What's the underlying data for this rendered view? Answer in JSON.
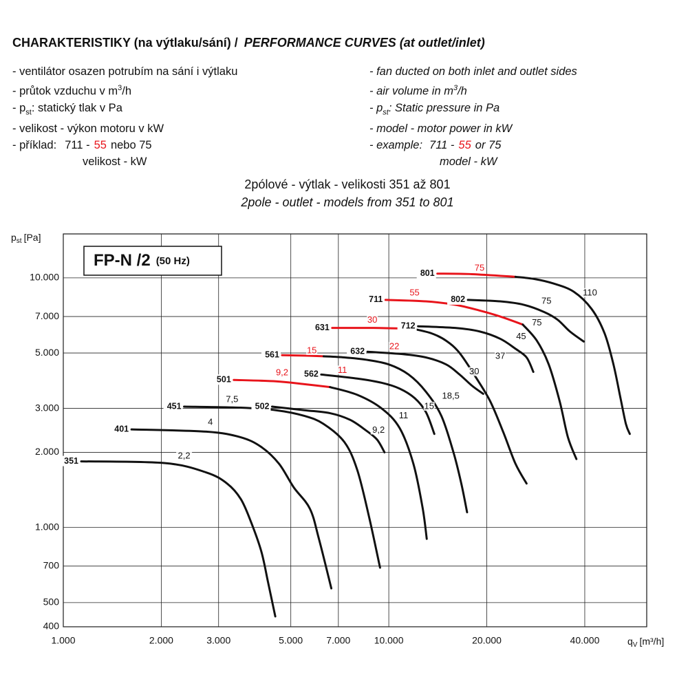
{
  "header": {
    "title_cz": "CHARAKTERISTIKY (na výtlaku/sání) /",
    "title_en": "PERFORMANCE CURVES (at outlet/inlet)",
    "cz": [
      [
        "- ventilátor osazen potrubím na sání i výtlaku"
      ],
      [
        "- průtok vzduchu v m",
        "3",
        "/h"
      ],
      [
        "- p",
        "st",
        ": statický tlak v Pa"
      ],
      [
        "- velikost - výkon motoru v kW"
      ],
      [
        "- příklad:",
        "711 -",
        "55",
        "nebo 75"
      ],
      [
        "velikost - kW"
      ]
    ],
    "en": [
      [
        "- fan ducted on both inlet and outlet sides"
      ],
      [
        "- air volume in m",
        "3",
        "/h"
      ],
      [
        "- p",
        "st",
        ": Static pressure in Pa"
      ],
      [
        "- model - motor power in kW"
      ],
      [
        "- example:",
        "711 -",
        "55",
        "or 75"
      ],
      [
        "model - kW"
      ]
    ]
  },
  "chart_data": {
    "type": "line",
    "subtitle_cz": "2pólové - výtlak - velikosti 351 až 801",
    "subtitle_en": "2pole - outlet - models from 351 to 801",
    "legend_title": "FP-N /2",
    "legend_note": "(50 Hz)",
    "y_label": [
      "p",
      "st",
      "[Pa]"
    ],
    "x_label": [
      "q",
      "V",
      "[m³/h]"
    ],
    "log_x": true,
    "log_y": true,
    "grid": true,
    "xlim": [
      1000,
      62000
    ],
    "ylim": [
      400,
      15000
    ],
    "xticks": [
      {
        "value": 1000,
        "label": "1.000"
      },
      {
        "value": 2000,
        "label": "2.000"
      },
      {
        "value": 3000,
        "label": "3.000"
      },
      {
        "value": 5000,
        "label": "5.000"
      },
      {
        "value": 7000,
        "label": "7.000"
      },
      {
        "value": 10000,
        "label": "10.000"
      },
      {
        "value": 20000,
        "label": "20.000"
      },
      {
        "value": 40000,
        "label": "40.000"
      }
    ],
    "yticks": [
      400,
      500,
      700,
      {
        "value": 1000,
        "label": "1.000"
      },
      {
        "value": 2000,
        "label": "2.000"
      },
      {
        "value": 3000,
        "label": "3.000"
      },
      {
        "value": 5000,
        "label": "5.000"
      },
      {
        "value": 7000,
        "label": "7.000"
      },
      {
        "value": 10000,
        "label": "10.000"
      }
    ],
    "series": [
      {
        "name": "351",
        "segments": [
          {
            "color": "#111111",
            "x": [
              1135,
              2055,
              2753,
              3185,
              3510,
              3775,
              4060,
              4260,
              4480
            ],
            "values": [
              1840,
              1810,
              1660,
              1500,
              1300,
              1050,
              800,
              600,
              440
            ]
          }
        ],
        "labels": [
          {
            "label": "2,2",
            "color": "#111111",
            "x": 2350,
            "y": 1930
          }
        ]
      },
      {
        "name": "401",
        "segments": [
          {
            "color": "#111111",
            "x": [
              1620,
              2750,
              3500,
              4060,
              4600,
              5100,
              5720,
              6100,
              6660
            ],
            "values": [
              2470,
              2420,
              2300,
              2100,
              1800,
              1450,
              1190,
              900,
              570
            ]
          }
        ],
        "labels": [
          {
            "label": "4",
            "color": "#111111",
            "x": 2830,
            "y": 2630
          }
        ]
      },
      {
        "name": "451",
        "segments": [
          {
            "color": "#111111",
            "x": [
              2350,
              3500,
              4500,
              5500,
              6300,
              7300,
              8000,
              8700,
              9400
            ],
            "values": [
              3050,
              3020,
              2950,
              2800,
              2600,
              2200,
              1700,
              1100,
              690
            ]
          }
        ],
        "labels": [
          {
            "label": "7,5",
            "color": "#111111",
            "x": 3300,
            "y": 3250
          }
        ]
      },
      {
        "name": "501",
        "segments": [
          {
            "color": "#e8141b",
            "x": [
              3340,
              4500,
              5500,
              6600
            ],
            "values": [
              3900,
              3850,
              3750,
              3650
            ]
          },
          {
            "color": "#111111",
            "x": [
              6600,
              8000,
              9500,
              10800,
              11900,
              12700,
              13080
            ],
            "values": [
              3650,
              3400,
              3000,
              2500,
              1800,
              1200,
              900
            ]
          }
        ],
        "labels": [
          {
            "label": "9,2",
            "color": "#e8141b",
            "x": 4700,
            "y": 4160
          },
          {
            "label": "11",
            "color": "#111111",
            "x": 11100,
            "y": 2800
          }
        ]
      },
      {
        "name": "502",
        "segments": [
          {
            "color": "#111111",
            "x": [
              4380,
              5500,
              6600,
              7600,
              8500,
              9200,
              9700
            ],
            "values": [
              3050,
              2950,
              2870,
              2700,
              2450,
              2250,
              2000
            ]
          }
        ],
        "labels": [
          {
            "label": "9,2",
            "color": "#111111",
            "x": 9300,
            "y": 2450
          }
        ]
      },
      {
        "name": "561",
        "segments": [
          {
            "color": "#e8141b",
            "x": [
              4700,
              5500,
              6310
            ],
            "values": [
              4900,
              4880,
              4850
            ]
          },
          {
            "color": "#111111",
            "x": [
              6310,
              7300,
              8500,
              10000,
              11500,
              13000,
              14500,
              15800,
              16700,
              17400
            ],
            "values": [
              4850,
              4800,
              4700,
              4500,
              4100,
              3500,
              2800,
              2000,
              1500,
              1150
            ]
          }
        ],
        "labels": [
          {
            "label": "15",
            "color": "#e8141b",
            "x": 5800,
            "y": 5100
          },
          {
            "label": "18,5",
            "color": "#111111",
            "x": 15500,
            "y": 3350
          }
        ]
      },
      {
        "name": "562",
        "segments": [
          {
            "color": "#111111",
            "x": [
              6200,
              8000,
              9500,
              10800,
              12000,
              13000,
              13800
            ],
            "values": [
              4100,
              3950,
              3800,
              3600,
              3300,
              2900,
              2370
            ]
          }
        ],
        "labels": [
          {
            "label": "11",
            "color": "#e8141b",
            "x": 7200,
            "y": 4260
          },
          {
            "label": "15",
            "color": "#111111",
            "x": 13300,
            "y": 3050
          }
        ]
      },
      {
        "name": "631",
        "segments": [
          {
            "color": "#e8141b",
            "x": [
              6700,
              9000,
              11870
            ],
            "values": [
              6300,
              6300,
              6250
            ]
          },
          {
            "color": "#111111",
            "x": [
              11870,
              13500,
              15000,
              16500,
              18500,
              20500,
              22500,
              24500,
              26500
            ],
            "values": [
              6250,
              6000,
              5600,
              5000,
              4000,
              3200,
              2400,
              1800,
              1500
            ]
          }
        ],
        "labels": [
          {
            "label": "30",
            "color": "#e8141b",
            "x": 8900,
            "y": 6750
          },
          {
            "label": "37",
            "color": "#111111",
            "x": 22000,
            "y": 4850
          }
        ]
      },
      {
        "name": "632",
        "segments": [
          {
            "color": "#111111",
            "x": [
              8600,
              11000,
              13000,
              15000,
              16500,
              18000,
              19500
            ],
            "values": [
              5060,
              4950,
              4800,
              4500,
              4100,
              3700,
              3430
            ]
          }
        ],
        "labels": [
          {
            "label": "22",
            "color": "#e8141b",
            "x": 10400,
            "y": 5300
          },
          {
            "label": "30",
            "color": "#111111",
            "x": 18300,
            "y": 4200
          }
        ]
      },
      {
        "name": "711",
        "segments": [
          {
            "color": "#e8141b",
            "x": [
              9770,
              13000,
              16000,
              19000,
              22000,
              25800
            ],
            "values": [
              8160,
              8050,
              7800,
              7400,
              7000,
              6500
            ]
          },
          {
            "color": "#111111",
            "x": [
              25800,
              28500,
              31000,
              33500,
              35500,
              37700
            ],
            "values": [
              6500,
              5600,
              4500,
              3200,
              2300,
              1880
            ]
          }
        ],
        "labels": [
          {
            "label": "55",
            "color": "#e8141b",
            "x": 12000,
            "y": 8700
          },
          {
            "label": "75",
            "color": "#111111",
            "x": 28500,
            "y": 6600
          }
        ]
      },
      {
        "name": "712",
        "segments": [
          {
            "color": "#111111",
            "x": [
              12300,
              16000,
              19000,
              22000,
              24500,
              26500,
              27800
            ],
            "values": [
              6400,
              6300,
              6100,
              5700,
              5200,
              4800,
              4200
            ]
          }
        ],
        "labels": [
          {
            "label": "45",
            "color": "#111111",
            "x": 25500,
            "y": 5800
          }
        ]
      },
      {
        "name": "801",
        "segments": [
          {
            "color": "#e8141b",
            "x": [
              14100,
              18000,
              24500
            ],
            "values": [
              10400,
              10350,
              10100
            ]
          },
          {
            "color": "#111111",
            "x": [
              24500,
              28000,
              32000,
              37000,
              42000,
              46000,
              49000,
              51500,
              53500,
              55000
            ],
            "values": [
              10100,
              9900,
              9500,
              8800,
              7500,
              6000,
              4500,
              3300,
              2600,
              2370
            ]
          }
        ],
        "labels": [
          {
            "label": "75",
            "color": "#e8141b",
            "x": 19000,
            "y": 10900
          },
          {
            "label": "110",
            "color": "#111111",
            "x": 41500,
            "y": 8700
          }
        ]
      },
      {
        "name": "802",
        "segments": [
          {
            "color": "#111111",
            "x": [
              17500,
              22000,
              26000,
              30000,
              33000,
              36000,
              39700
            ],
            "values": [
              8160,
              8050,
              7800,
              7300,
              6800,
              6100,
              5560
            ]
          }
        ],
        "labels": [
          {
            "label": "75",
            "color": "#111111",
            "x": 30500,
            "y": 8050
          }
        ]
      }
    ]
  }
}
